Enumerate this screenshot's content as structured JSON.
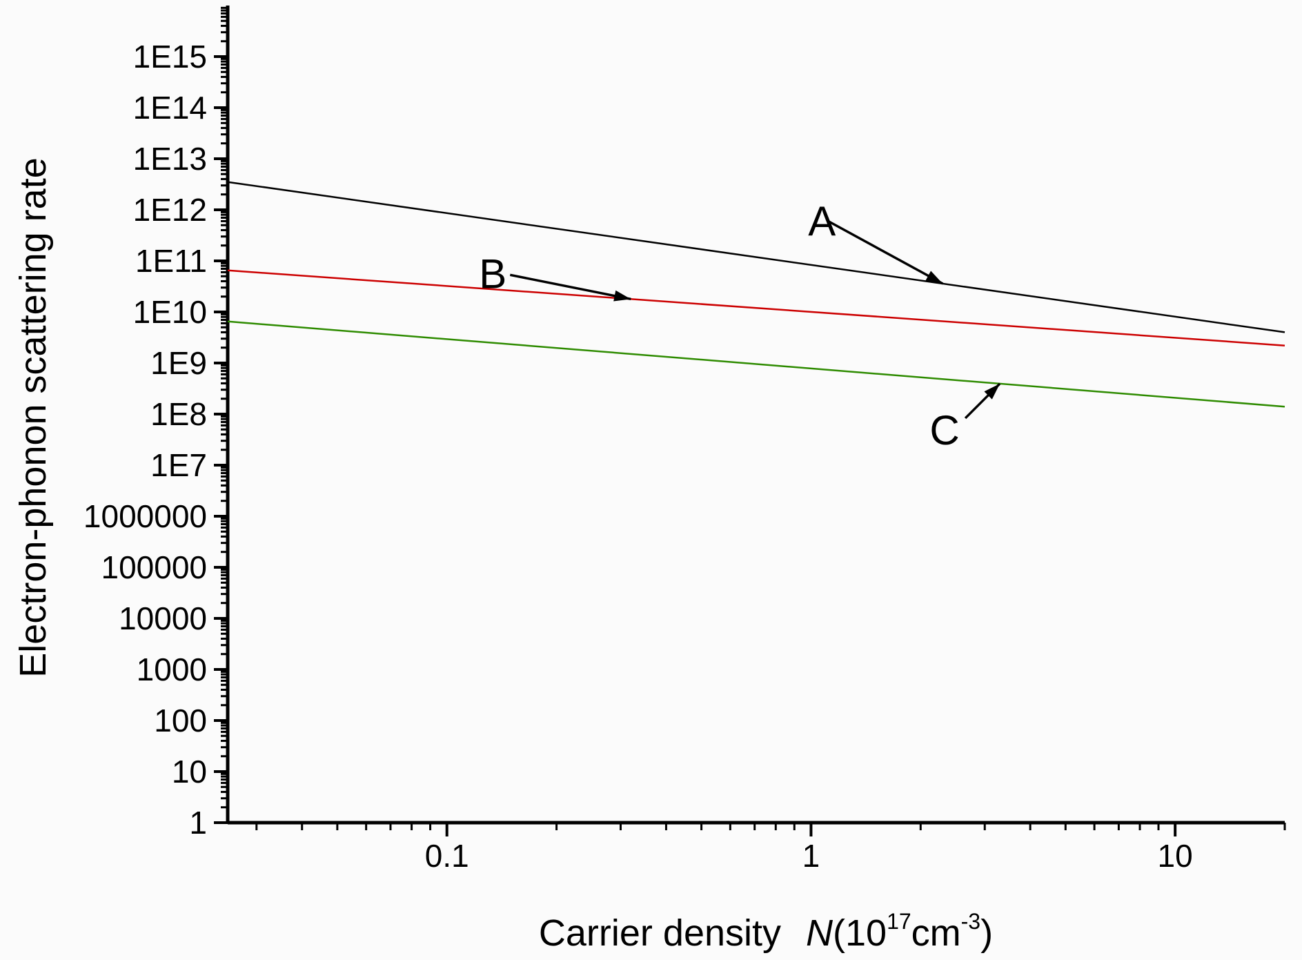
{
  "chart_data": {
    "type": "line",
    "title": "",
    "xlabel": {
      "prefix": "Carrier density",
      "symbol": "N",
      "unit_open": "(10",
      "unit_exp": "17",
      "unit_mid": "cm",
      "unit_exp2": "-3",
      "unit_close": ")"
    },
    "ylabel": "Electron-phonon scattering rate",
    "x_scale": "log",
    "y_scale": "log",
    "xlim": [
      0.025,
      20
    ],
    "ylim": [
      1,
      1e+16
    ],
    "x_ticks": [
      {
        "value": 0.1,
        "label": "0.1"
      },
      {
        "value": 1,
        "label": "1"
      },
      {
        "value": 10,
        "label": "10"
      }
    ],
    "y_ticks": [
      {
        "value": 1,
        "label": "1"
      },
      {
        "value": 10,
        "label": "10"
      },
      {
        "value": 100,
        "label": "100"
      },
      {
        "value": 1000,
        "label": "1000"
      },
      {
        "value": 10000,
        "label": "10000"
      },
      {
        "value": 100000,
        "label": "100000"
      },
      {
        "value": 1000000,
        "label": "1000000"
      },
      {
        "value": 10000000.0,
        "label": "1E7"
      },
      {
        "value": 100000000.0,
        "label": "1E8"
      },
      {
        "value": 1000000000.0,
        "label": "1E9"
      },
      {
        "value": 10000000000.0,
        "label": "1E10"
      },
      {
        "value": 100000000000.0,
        "label": "1E11"
      },
      {
        "value": 1000000000000.0,
        "label": "1E12"
      },
      {
        "value": 10000000000000.0,
        "label": "1E13"
      },
      {
        "value": 100000000000000.0,
        "label": "1E14"
      },
      {
        "value": 1000000000000000.0,
        "label": "1E15"
      }
    ],
    "grid": false,
    "legend": "none",
    "series": [
      {
        "name": "A",
        "color": "#000000",
        "x": [
          0.025,
          20
        ],
        "y": [
          3500000000000.0,
          4000000000.0
        ]
      },
      {
        "name": "B",
        "color": "#cc0000",
        "x": [
          0.025,
          20
        ],
        "y": [
          65000000000.0,
          2200000000.0
        ]
      },
      {
        "name": "C",
        "color": "#2e8b00",
        "x": [
          0.025,
          20
        ],
        "y": [
          6500000000.0,
          140000000.0
        ]
      }
    ],
    "annotations": [
      {
        "text": "A",
        "series": "A",
        "arrow_to_x": 2.3
      },
      {
        "text": "B",
        "series": "B",
        "arrow_to_x": 0.32
      },
      {
        "text": "C",
        "series": "C",
        "arrow_to_x": 3.3
      }
    ]
  }
}
